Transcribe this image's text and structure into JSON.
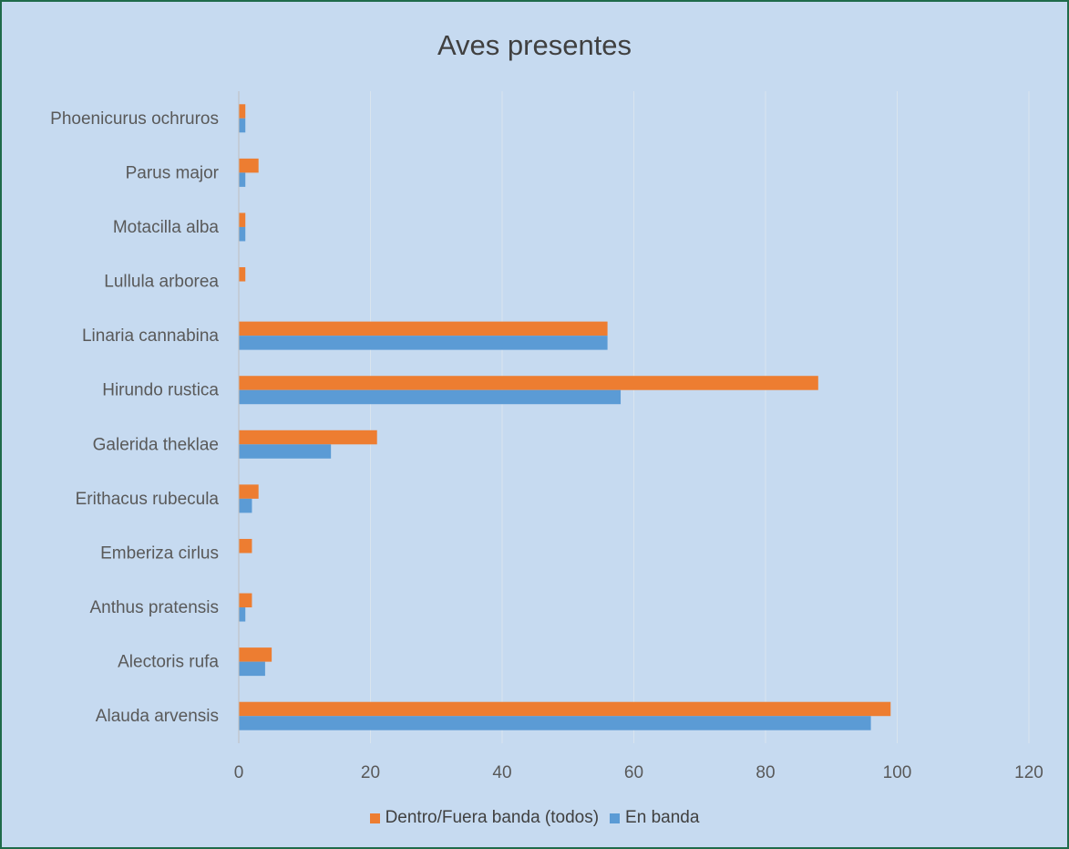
{
  "chart_data": {
    "type": "bar",
    "orientation": "horizontal",
    "title": "Aves presentes",
    "categories": [
      "Alauda arvensis",
      "Alectoris rufa",
      "Anthus pratensis",
      "Emberiza cirlus",
      "Erithacus rubecula",
      "Galerida theklae",
      "Hirundo rustica",
      "Linaria cannabina",
      "Lullula arborea",
      "Motacilla alba",
      "Parus major",
      "Phoenicurus ochruros"
    ],
    "series": [
      {
        "name": "Dentro/Fuera banda (todos)",
        "color": "#ed7d31",
        "values": [
          99,
          5,
          2,
          2,
          3,
          21,
          88,
          56,
          1,
          1,
          3,
          1
        ]
      },
      {
        "name": "En banda",
        "color": "#5b9bd5",
        "values": [
          96,
          4,
          1,
          0,
          2,
          14,
          58,
          56,
          0,
          1,
          1,
          1
        ]
      }
    ],
    "xlim": [
      0,
      120
    ],
    "xticks": [
      "0",
      "20",
      "40",
      "60",
      "80",
      "100",
      "120"
    ],
    "grid": "vertical",
    "legend_position": "bottom"
  }
}
